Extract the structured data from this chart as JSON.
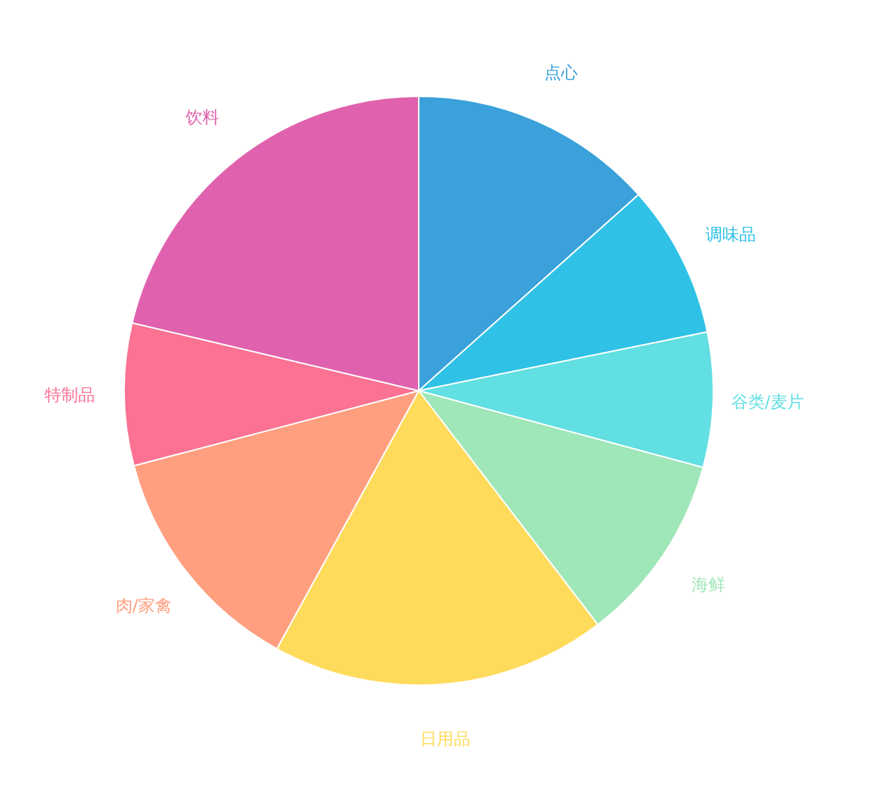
{
  "chart_data": {
    "type": "pie",
    "categories": [
      "点心",
      "调味品",
      "谷类/麦片",
      "海鲜",
      "日用品",
      "肉/家禽",
      "特制品",
      "饮料"
    ],
    "values": [
      13.4,
      8.4,
      7.4,
      10.4,
      18.4,
      12.9,
      7.8,
      21.3
    ],
    "colors": [
      "#3aa1db",
      "#2fc2e6",
      "#62dfe2",
      "#9fe6b8",
      "#ffdb5c",
      "#ff9f7f",
      "#fb7293",
      "#e062ae"
    ],
    "legend": false
  }
}
